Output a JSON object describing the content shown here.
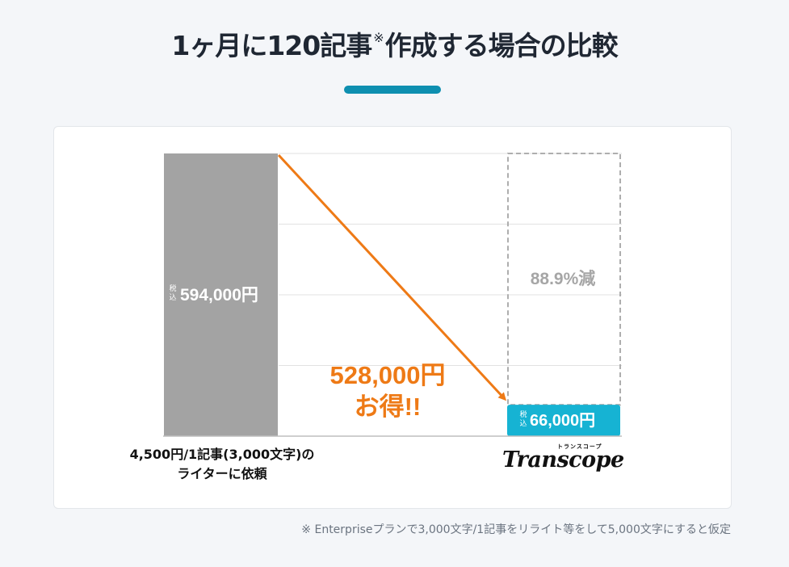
{
  "page": {
    "title_main": "1ヶ月に120記事",
    "title_mark": "※",
    "title_rest": "作成する場合の比較",
    "accent_color": "#0e8fb0",
    "footnote": "※ Enterpriseプランで3,000文字/1記事をリライト等をして5,000文字にすると仮定"
  },
  "labels": {
    "tax_small_1": "税",
    "tax_small_2": "込",
    "left_price": "594,000円",
    "right_price": "66,000円",
    "reduction": "88.9%減",
    "savings_line1": "528,000円",
    "savings_line2": "お得!!",
    "left_caption_line1": "4,500円/1記事(3,000文字)の",
    "left_caption_line2": "ライターに依頼",
    "logo_text": "Transcope",
    "logo_kana": "トランスコープ"
  },
  "chart_data": {
    "type": "bar",
    "categories": [
      "4,500円/1記事(3,000文字)の ライターに依頼",
      "Transcope"
    ],
    "values": [
      594000,
      66000
    ],
    "ylim": [
      0,
      594000
    ],
    "grid": true,
    "gridlines": 4,
    "colors": {
      "left": "#a3a3a3",
      "right": "#16b3d3",
      "arrow": "#ee7a16",
      "dashed": "#aeaeae",
      "grid": "#e2e2e2"
    }
  }
}
